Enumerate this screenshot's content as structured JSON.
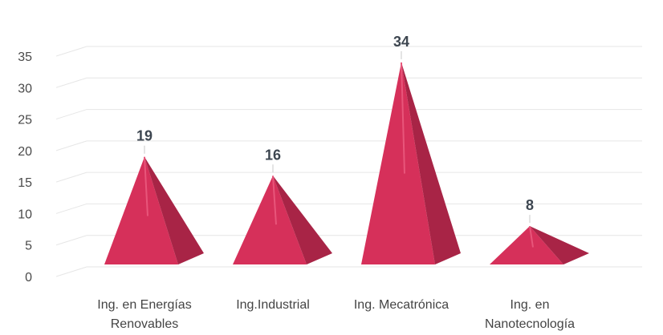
{
  "chart_data": {
    "type": "bar",
    "subtype": "3d-pyramid",
    "title": "",
    "xlabel": "",
    "ylabel": "",
    "categories": [
      [
        "Ing. en Energías",
        "Renovables"
      ],
      [
        "Ing.Industrial"
      ],
      [
        "Ing. Mecatrónica"
      ],
      [
        "Ing. en",
        "Nanotecnología"
      ]
    ],
    "values": [
      19,
      16,
      34,
      8
    ],
    "data_labels": [
      "19",
      "16",
      "34",
      "8"
    ],
    "ylim": [
      0,
      35
    ],
    "yticks": [
      "0",
      "5",
      "10",
      "15",
      "20",
      "25",
      "30",
      "35"
    ],
    "grid": true,
    "legend": "none",
    "colors": {
      "pyramid_front": "#d6305a",
      "pyramid_side": "#a82446",
      "pyramid_highlight": "#e8557a",
      "data_label": "#3d4650",
      "gridline": "#e6e6e6"
    }
  }
}
